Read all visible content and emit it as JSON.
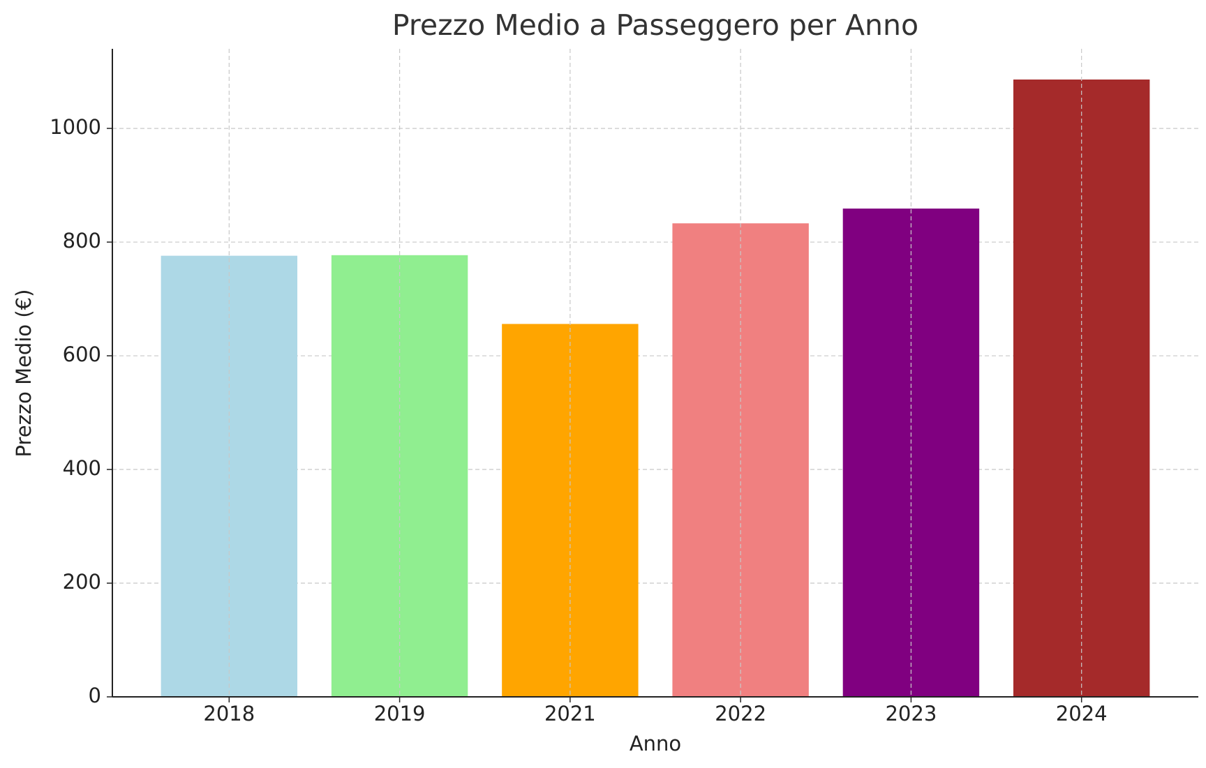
{
  "chart_data": {
    "type": "bar",
    "title": "Prezzo Medio a Passeggero per Anno",
    "x_label": "Anno",
    "y_label": "Prezzo Medio (€)",
    "categories": [
      "2018",
      "2019",
      "2021",
      "2022",
      "2023",
      "2024"
    ],
    "values": [
      776,
      777,
      656,
      833,
      859,
      1086
    ],
    "colors": [
      "#add8e6",
      "#90ee90",
      "#ffa500",
      "#f08080",
      "#800080",
      "#a52a2a"
    ],
    "ylim": [
      0,
      1140
    ],
    "yticks": [
      0,
      200,
      400,
      600,
      800,
      1000
    ],
    "grid": true
  }
}
